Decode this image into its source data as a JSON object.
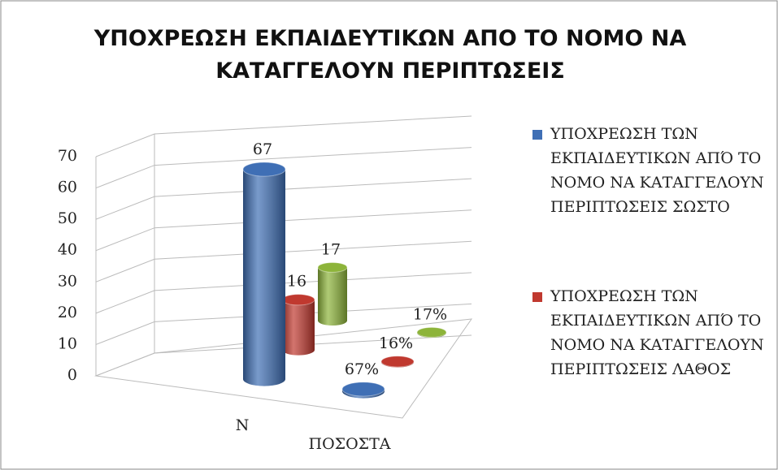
{
  "chart_data": {
    "type": "bar3d",
    "title": "ΥΠΟΧΡΕΩΣΗ ΕΚΠΑΙΔΕΥΤΙΚΩΝ ΑΠΟ ΤΟ ΝΟΜΟ ΝΑ ΚΑΤΑΓΓΕΛΟΥΝ ΠΕΡΙΠΤΩΣΕΙΣ",
    "categories": [
      "Ν",
      "ΠΟΣΟΣΤΑ"
    ],
    "series": [
      {
        "name": "ΥΠΟΧΡΕΩΣΗ ΤΩΝ ΕΚΠΑΙΔΕΥΤΙΚΩΝ ΑΠΌ ΤΟ ΝΟΜΟ ΝΑ ΚΑΤΑΓΓΕΛΟΥΝ ΠΕΡΙΠΤΩΣΕΙΣ ΣΩΣΤΟ",
        "color": "#3f6fb5",
        "values": [
          67,
          0.67
        ],
        "value_labels": [
          "67",
          "67%"
        ]
      },
      {
        "name": "ΥΠΟΧΡΕΩΣΗ ΤΩΝ ΕΚΠΑΙΔΕΥΤΙΚΩΝ ΑΠΌ ΤΟ ΝΟΜΟ ΝΑ ΚΑΤΑΓΓΕΛΟΥΝ ΠΕΡΙΠΤΩΣΕΙΣ ΛΑΘΟΣ",
        "color": "#c0392f",
        "values": [
          16,
          0.16
        ],
        "value_labels": [
          "16",
          "16%"
        ]
      },
      {
        "color": "#8db43a",
        "values": [
          17,
          0.17
        ],
        "value_labels": [
          "17",
          "17%"
        ]
      }
    ],
    "ylim": [
      0,
      70
    ],
    "yticks": [
      0,
      10,
      20,
      30,
      40,
      50,
      60,
      70
    ],
    "grid": true
  }
}
